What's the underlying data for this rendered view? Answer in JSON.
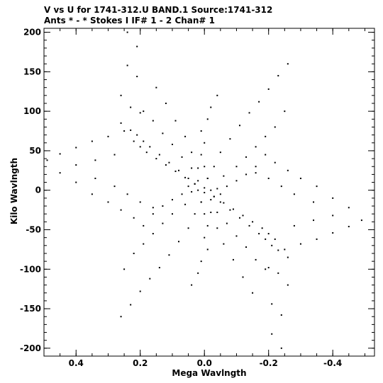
{
  "header": {
    "line1": "V vs U for 1741-312.U BAND.1   Source:1741-312",
    "line2": "Ants * - *     Stokes I   IF# 1 - 2   Chan# 1"
  },
  "chart_data": {
    "type": "scatter",
    "title": "V vs U for 1741-312.U BAND.1   Source:1741-312",
    "subtitle": "Ants * - *     Stokes I   IF# 1 - 2   Chan# 1",
    "xlabel": "Mega Wavlngth",
    "ylabel": "Kilo Wavlngth",
    "xlim": [
      0.5,
      -0.53
    ],
    "ylim": [
      -210,
      205
    ],
    "x_ticks": [
      {
        "value": 0.4,
        "label": "0.4"
      },
      {
        "value": 0.2,
        "label": "0.2"
      },
      {
        "value": 0.0,
        "label": "0.0"
      },
      {
        "value": -0.2,
        "label": "-0.2"
      },
      {
        "value": -0.4,
        "label": "-0.4"
      }
    ],
    "y_ticks": [
      {
        "value": 200,
        "label": "200"
      },
      {
        "value": 150,
        "label": "150"
      },
      {
        "value": 100,
        "label": "100"
      },
      {
        "value": 50,
        "label": "50"
      },
      {
        "value": 0,
        "label": "0"
      },
      {
        "value": -50,
        "label": "-50"
      },
      {
        "value": -100,
        "label": "-100"
      },
      {
        "value": -150,
        "label": "-150"
      },
      {
        "value": -200,
        "label": "-200"
      }
    ],
    "grid": false,
    "legend": "none",
    "point_color": "#000000",
    "pattern": "six-armed radial uv-coverage star, symmetric through the origin",
    "series": [
      {
        "points": [
          [
            0.24,
            200
          ],
          [
            0.21,
            182
          ],
          [
            0.24,
            158
          ],
          [
            0.21,
            144
          ],
          [
            0.26,
            120
          ],
          [
            0.23,
            105
          ],
          [
            0.2,
            98
          ],
          [
            0.26,
            85
          ],
          [
            0.23,
            76
          ],
          [
            0.21,
            70
          ],
          [
            0.19,
            62
          ],
          [
            0.17,
            55
          ],
          [
            0.14,
            45
          ],
          [
            0.11,
            35
          ],
          [
            0.08,
            25
          ],
          [
            0.05,
            15
          ],
          [
            0.03,
            8
          ],
          [
            0.19,
            100
          ],
          [
            0.16,
            88
          ],
          [
            0.13,
            72
          ],
          [
            0.1,
            58
          ],
          [
            0.07,
            42
          ],
          [
            0.04,
            28
          ],
          [
            0.02,
            12
          ],
          [
            0.15,
            130
          ],
          [
            0.12,
            110
          ],
          [
            0.09,
            88
          ],
          [
            0.06,
            68
          ],
          [
            0.04,
            48
          ],
          [
            0.02,
            28
          ],
          [
            -0.24,
            -200
          ],
          [
            -0.21,
            -182
          ],
          [
            -0.24,
            -158
          ],
          [
            -0.21,
            -144
          ],
          [
            -0.26,
            -120
          ],
          [
            -0.23,
            -105
          ],
          [
            -0.2,
            -98
          ],
          [
            -0.26,
            -85
          ],
          [
            -0.23,
            -76
          ],
          [
            -0.21,
            -70
          ],
          [
            -0.19,
            -62
          ],
          [
            -0.17,
            -55
          ],
          [
            -0.14,
            -45
          ],
          [
            -0.11,
            -35
          ],
          [
            -0.08,
            -25
          ],
          [
            -0.05,
            -15
          ],
          [
            -0.03,
            -8
          ],
          [
            -0.19,
            -100
          ],
          [
            -0.16,
            -88
          ],
          [
            -0.13,
            -72
          ],
          [
            -0.1,
            -58
          ],
          [
            -0.07,
            -42
          ],
          [
            -0.04,
            -28
          ],
          [
            -0.02,
            -12
          ],
          [
            -0.15,
            -130
          ],
          [
            -0.12,
            -110
          ],
          [
            -0.09,
            -88
          ],
          [
            -0.06,
            -68
          ],
          [
            -0.04,
            -48
          ],
          [
            -0.02,
            -28
          ],
          [
            0.49,
            38
          ],
          [
            0.45,
            46
          ],
          [
            0.4,
            54
          ],
          [
            0.35,
            62
          ],
          [
            0.3,
            68
          ],
          [
            0.25,
            75
          ],
          [
            0.22,
            62
          ],
          [
            0.2,
            55
          ],
          [
            0.18,
            48
          ],
          [
            0.15,
            40
          ],
          [
            0.12,
            32
          ],
          [
            0.09,
            24
          ],
          [
            0.06,
            16
          ],
          [
            0.03,
            8
          ],
          [
            0.45,
            22
          ],
          [
            0.4,
            10
          ],
          [
            0.35,
            -5
          ],
          [
            0.3,
            -15
          ],
          [
            0.26,
            -25
          ],
          [
            0.22,
            -35
          ],
          [
            0.19,
            -45
          ],
          [
            0.16,
            -30
          ],
          [
            0.13,
            -20
          ],
          [
            0.1,
            -12
          ],
          [
            0.07,
            -5
          ],
          [
            0.04,
            -2
          ],
          [
            0.4,
            32
          ],
          [
            0.34,
            38
          ],
          [
            0.28,
            45
          ],
          [
            0.34,
            15
          ],
          [
            0.28,
            5
          ],
          [
            0.24,
            -5
          ],
          [
            0.2,
            -15
          ],
          [
            0.16,
            -22
          ],
          [
            -0.49,
            -38
          ],
          [
            -0.45,
            -46
          ],
          [
            -0.4,
            -54
          ],
          [
            -0.35,
            -62
          ],
          [
            -0.3,
            -68
          ],
          [
            -0.25,
            -75
          ],
          [
            -0.22,
            -62
          ],
          [
            -0.2,
            -55
          ],
          [
            -0.18,
            -48
          ],
          [
            -0.15,
            -40
          ],
          [
            -0.12,
            -32
          ],
          [
            -0.09,
            -24
          ],
          [
            -0.06,
            -16
          ],
          [
            -0.03,
            -8
          ],
          [
            -0.45,
            -22
          ],
          [
            -0.4,
            -10
          ],
          [
            -0.35,
            5
          ],
          [
            -0.3,
            15
          ],
          [
            -0.26,
            25
          ],
          [
            -0.22,
            35
          ],
          [
            -0.19,
            45
          ],
          [
            -0.16,
            30
          ],
          [
            -0.13,
            20
          ],
          [
            -0.1,
            12
          ],
          [
            -0.07,
            5
          ],
          [
            -0.04,
            2
          ],
          [
            -0.4,
            -32
          ],
          [
            -0.34,
            -38
          ],
          [
            -0.28,
            -45
          ],
          [
            -0.34,
            -15
          ],
          [
            -0.28,
            -5
          ],
          [
            -0.24,
            5
          ],
          [
            -0.2,
            15
          ],
          [
            -0.16,
            22
          ],
          [
            -0.26,
            160
          ],
          [
            -0.23,
            145
          ],
          [
            -0.2,
            128
          ],
          [
            -0.17,
            112
          ],
          [
            -0.14,
            98
          ],
          [
            -0.11,
            82
          ],
          [
            -0.08,
            65
          ],
          [
            -0.05,
            48
          ],
          [
            -0.03,
            30
          ],
          [
            -0.01,
            15
          ],
          [
            -0.04,
            120
          ],
          [
            -0.02,
            105
          ],
          [
            -0.01,
            90
          ],
          [
            0.01,
            75
          ],
          [
            0.0,
            60
          ],
          [
            0.01,
            45
          ],
          [
            0.0,
            30
          ],
          [
            -0.01,
            15
          ],
          [
            -0.25,
            100
          ],
          [
            -0.22,
            80
          ],
          [
            -0.19,
            68
          ],
          [
            -0.16,
            55
          ],
          [
            -0.13,
            42
          ],
          [
            -0.1,
            30
          ],
          [
            -0.06,
            18
          ],
          [
            0.26,
            -160
          ],
          [
            0.23,
            -145
          ],
          [
            0.2,
            -128
          ],
          [
            0.17,
            -112
          ],
          [
            0.14,
            -98
          ],
          [
            0.11,
            -82
          ],
          [
            0.08,
            -65
          ],
          [
            0.05,
            -48
          ],
          [
            0.03,
            -30
          ],
          [
            0.01,
            -15
          ],
          [
            0.04,
            -120
          ],
          [
            0.02,
            -105
          ],
          [
            0.01,
            -90
          ],
          [
            -0.01,
            -75
          ],
          [
            0.0,
            -60
          ],
          [
            -0.01,
            -45
          ],
          [
            0.0,
            -30
          ],
          [
            0.01,
            -15
          ],
          [
            0.25,
            -100
          ],
          [
            0.22,
            -80
          ],
          [
            0.19,
            -68
          ],
          [
            0.16,
            -55
          ],
          [
            0.13,
            -42
          ],
          [
            0.1,
            -30
          ],
          [
            0.06,
            -18
          ],
          [
            0.02,
            0
          ],
          [
            -0.02,
            0
          ],
          [
            0.0,
            3
          ],
          [
            0.0,
            -3
          ],
          [
            0.05,
            5
          ],
          [
            -0.05,
            -5
          ]
        ]
      }
    ]
  }
}
